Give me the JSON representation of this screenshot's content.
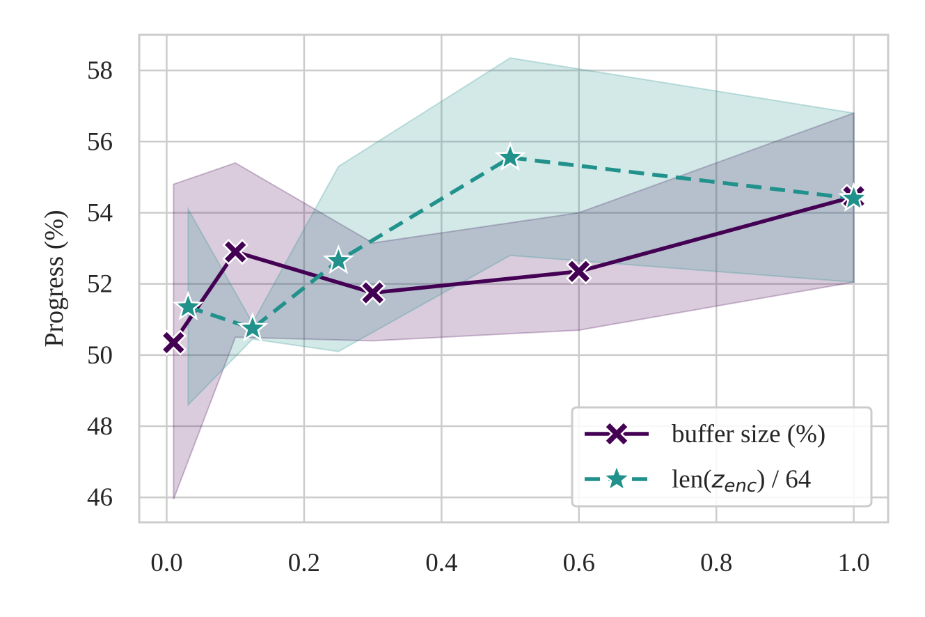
{
  "chart_data": {
    "type": "line",
    "title": "",
    "xlabel": "",
    "ylabel": "Progress (%)",
    "xlim": [
      -0.04,
      1.05
    ],
    "ylim": [
      45.3,
      59.0
    ],
    "grid": true,
    "legend_position": "bottom-right",
    "x_ticks": [
      0.0,
      0.2,
      0.4,
      0.6,
      0.8,
      1.0
    ],
    "x_tick_labels": [
      "0.0",
      "0.2",
      "0.4",
      "0.6",
      "0.8",
      "1.0"
    ],
    "y_ticks": [
      46,
      48,
      50,
      52,
      54,
      56,
      58
    ],
    "y_tick_labels": [
      "46",
      "48",
      "50",
      "52",
      "54",
      "56",
      "58"
    ],
    "series": [
      {
        "name": "buffer size (%)",
        "legend_label": "buffer size (%)",
        "color": "#440154",
        "marker": "x",
        "linestyle": "solid",
        "x": [
          0.01,
          0.1,
          0.3,
          0.6,
          1.0
        ],
        "y": [
          50.35,
          52.9,
          51.75,
          52.35,
          54.45
        ],
        "ci_low": [
          45.95,
          50.5,
          50.4,
          50.7,
          52.05
        ],
        "ci_high": [
          54.8,
          55.4,
          53.15,
          54.0,
          56.8
        ]
      },
      {
        "name": "len(z_enc) / 64",
        "legend_label_prefix": "len(",
        "legend_label_var": "z",
        "legend_label_sub": "enc",
        "legend_label_suffix": ") / 64",
        "color": "#21918c",
        "marker": "star",
        "linestyle": "dashed",
        "x": [
          0.03125,
          0.125,
          0.25,
          0.5,
          1.0
        ],
        "y": [
          51.35,
          50.75,
          52.65,
          55.55,
          54.4
        ],
        "ci_low": [
          48.6,
          50.45,
          50.1,
          52.8,
          52.05
        ],
        "ci_high": [
          54.1,
          50.9,
          55.3,
          58.35,
          56.8
        ]
      }
    ]
  }
}
